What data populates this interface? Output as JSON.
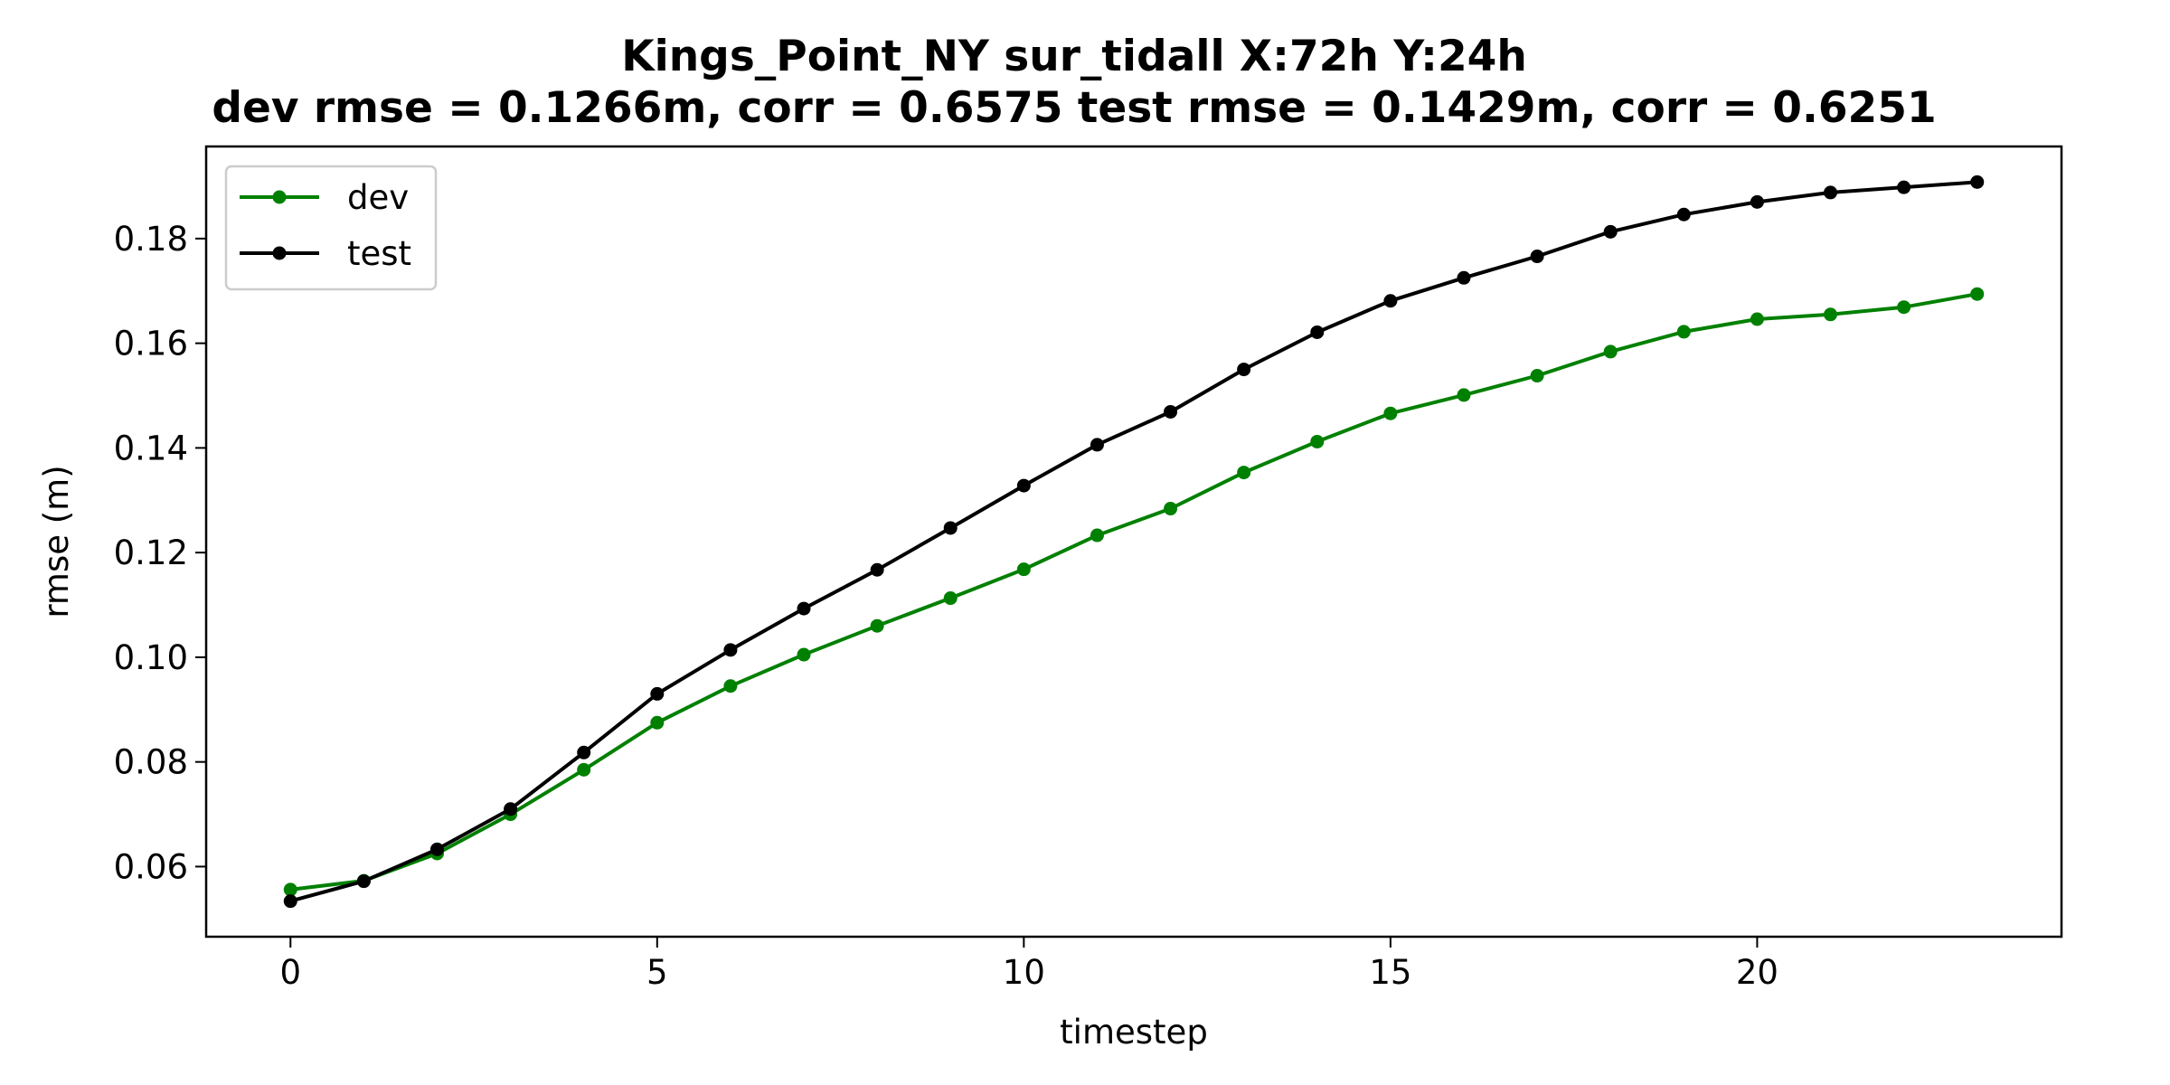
{
  "chart_data": {
    "type": "line",
    "title": "Kings_Point_NY   sur_tidall   X:72h   Y:24h",
    "subtitle": "dev rmse = 0.1266m, corr = 0.6575   test rmse = 0.1429m, corr = 0.6251",
    "xlabel": "timestep",
    "ylabel": "rmse (m)",
    "xlim": [
      -1.15,
      24.15
    ],
    "ylim": [
      0.0466,
      0.1976
    ],
    "xticks": [
      0,
      5,
      10,
      15,
      20
    ],
    "yticks": [
      0.06,
      0.08,
      0.1,
      0.12,
      0.14,
      0.16,
      0.18
    ],
    "ytick_labels": [
      "0.06",
      "0.08",
      "0.10",
      "0.12",
      "0.14",
      "0.16",
      "0.18"
    ],
    "grid": false,
    "legend_position": "upper-left",
    "x": [
      0,
      1,
      2,
      3,
      4,
      5,
      6,
      7,
      8,
      9,
      10,
      11,
      12,
      13,
      14,
      15,
      16,
      17,
      18,
      19,
      20,
      21,
      22,
      23
    ],
    "series": [
      {
        "name": "dev",
        "color": "#008000",
        "marker": "circle",
        "values": [
          0.0556,
          0.0573,
          0.0625,
          0.07,
          0.0785,
          0.0875,
          0.0945,
          0.1005,
          0.106,
          0.1113,
          0.1168,
          0.1233,
          0.1284,
          0.1353,
          0.1412,
          0.1466,
          0.1501,
          0.1538,
          0.1584,
          0.1622,
          0.1646,
          0.1655,
          0.1669,
          0.1694
        ]
      },
      {
        "name": "test",
        "color": "#000000",
        "marker": "circle",
        "values": [
          0.0534,
          0.0572,
          0.0633,
          0.071,
          0.0818,
          0.093,
          0.1014,
          0.1093,
          0.1167,
          0.1247,
          0.1328,
          0.1406,
          0.1469,
          0.155,
          0.1621,
          0.1681,
          0.1725,
          0.1766,
          0.1813,
          0.1846,
          0.187,
          0.1888,
          0.1898,
          0.1908
        ]
      }
    ]
  }
}
